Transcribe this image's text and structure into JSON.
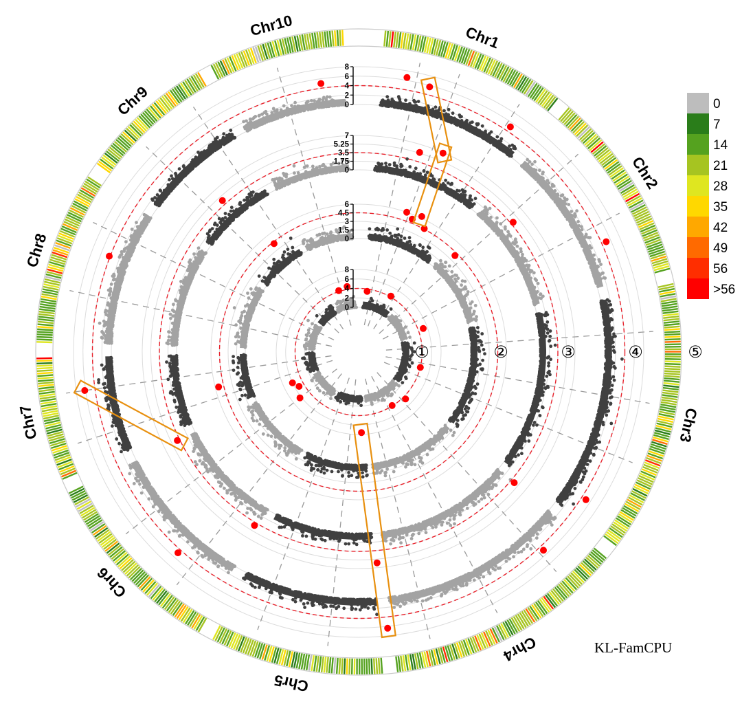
{
  "chart_data": {
    "type": "scatter",
    "subtype": "circular-manhattan",
    "method_label": "KL-FamCPU",
    "chromosomes": [
      "Chr1",
      "Chr2",
      "Chr3",
      "Chr4",
      "Chr5",
      "Chr6",
      "Chr7",
      "Chr8",
      "Chr9",
      "Chr10"
    ],
    "chromosome_angles_deg": [
      [
        4,
        39
      ],
      [
        40,
        76
      ],
      [
        77,
        128
      ],
      [
        129,
        174
      ],
      [
        175,
        208
      ],
      [
        209,
        245
      ],
      [
        246,
        270
      ],
      [
        271,
        304
      ],
      [
        305,
        331
      ],
      [
        332,
        358
      ]
    ],
    "tracks": [
      {
        "index": "①",
        "ticks": [
          "0",
          "2",
          "4",
          "6",
          "8"
        ],
        "ylim": [
          0,
          8
        ],
        "threshold": 4,
        "significant": [
          [
            8,
            3.5
          ],
          [
            30,
            4.2
          ],
          [
            70,
            5.1
          ],
          [
            104,
            4.0
          ],
          [
            135,
            4.6
          ],
          [
            148,
            3.9
          ],
          [
            178,
            7.6
          ],
          [
            232,
            6.3
          ],
          [
            240,
            5.1
          ],
          [
            245,
            6.0
          ],
          [
            342,
            4.2
          ],
          [
            350,
            4.6
          ]
        ]
      },
      {
        "index": "②",
        "ticks": [
          "0",
          "1.5",
          "3",
          "4.5",
          "6"
        ],
        "ylim": [
          0,
          6
        ],
        "threshold": 4.5,
        "significant": [
          [
            19,
            6.0
          ],
          [
            22,
            5.2
          ],
          [
            25,
            6.3
          ],
          [
            28,
            4.6
          ],
          [
            45,
            4.0
          ],
          [
            256,
            5.4
          ],
          [
            322,
            4.2
          ]
        ]
      },
      {
        "index": "③",
        "ticks": [
          "0",
          "1.75",
          "3.5",
          "5.25",
          "7"
        ],
        "ylim": [
          0,
          7
        ],
        "threshold": 3.5,
        "significant": [
          [
            17,
            5.4
          ],
          [
            23,
            6.9
          ],
          [
            50,
            4.0
          ],
          [
            130,
            4.3
          ],
          [
            175,
            6.0
          ],
          [
            211,
            4.1
          ],
          [
            244,
            4.0
          ],
          [
            318,
            4.4
          ]
        ]
      },
      {
        "index": "④",
        "ticks": [
          "0",
          "2",
          "4",
          "6",
          "8"
        ],
        "ylim": [
          0,
          8
        ],
        "threshold": 4,
        "significant": [
          [
            10,
            6.6
          ],
          [
            15,
            5.7
          ],
          [
            34,
            5.1
          ],
          [
            66,
            5.0
          ],
          [
            123,
            5.0
          ],
          [
            137,
            5.0
          ],
          [
            174,
            6.4
          ],
          [
            222,
            4.8
          ],
          [
            262,
            6.2
          ],
          [
            291,
            4.2
          ],
          [
            352,
            5.0
          ]
        ]
      }
    ],
    "highlight_boxes": [
      {
        "tracks": [
          "③",
          "④"
        ],
        "chromosome": "Chr1"
      },
      {
        "tracks": [
          "②",
          "③"
        ],
        "chromosome": "Chr1"
      },
      {
        "tracks": [
          "①",
          "④"
        ],
        "chromosome": "Chr5"
      },
      {
        "tracks": [
          "③",
          "④"
        ],
        "chromosome": "Chr7"
      }
    ],
    "density_ring": {
      "index": "⑤"
    },
    "legend": {
      "entries": [
        "0",
        "7",
        "14",
        "21",
        "28",
        "35",
        "42",
        "49",
        "56",
        ">56"
      ],
      "colors": [
        "#bdbdbd",
        "#2a7d1a",
        "#55a21f",
        "#a6c421",
        "#dfe620",
        "#ffd800",
        "#ffa800",
        "#ff6a00",
        "#ff2e00",
        "#ff0000"
      ]
    },
    "colors": {
      "dark": "#404040",
      "light": "#a3a3a3",
      "threshold": "#e8212b",
      "significant": "#ff0000",
      "box": "#e8900f"
    }
  }
}
